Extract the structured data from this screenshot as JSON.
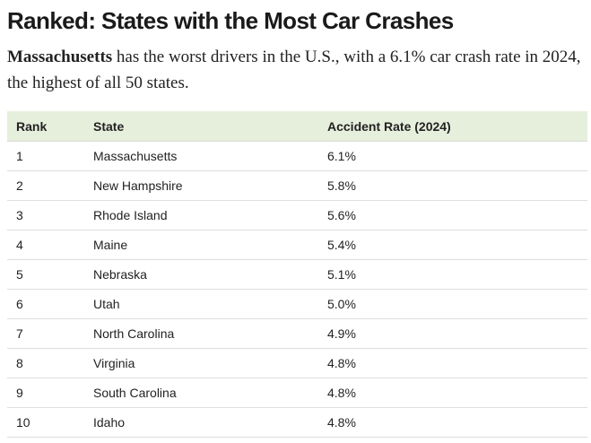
{
  "headline": "Ranked: States with the Most Car Crashes",
  "intro": {
    "bold_lead": "Massachusetts",
    "text": " has the worst drivers in the U.S., with a 6.1% car crash rate in 2024, the highest of all 50 states."
  },
  "table": {
    "headers": [
      "Rank",
      "State",
      "Accident Rate (2024)"
    ],
    "rows": [
      [
        "1",
        "Massachusetts",
        "6.1%"
      ],
      [
        "2",
        "New Hampshire",
        "5.8%"
      ],
      [
        "3",
        "Rhode Island",
        "5.6%"
      ],
      [
        "4",
        "Maine",
        "5.4%"
      ],
      [
        "5",
        "Nebraska",
        "5.1%"
      ],
      [
        "6",
        "Utah",
        "5.0%"
      ],
      [
        "7",
        "North Carolina",
        "4.9%"
      ],
      [
        "8",
        "Virginia",
        "4.8%"
      ],
      [
        "9",
        "South Carolina",
        "4.8%"
      ],
      [
        "10",
        "Idaho",
        "4.8%"
      ]
    ]
  }
}
